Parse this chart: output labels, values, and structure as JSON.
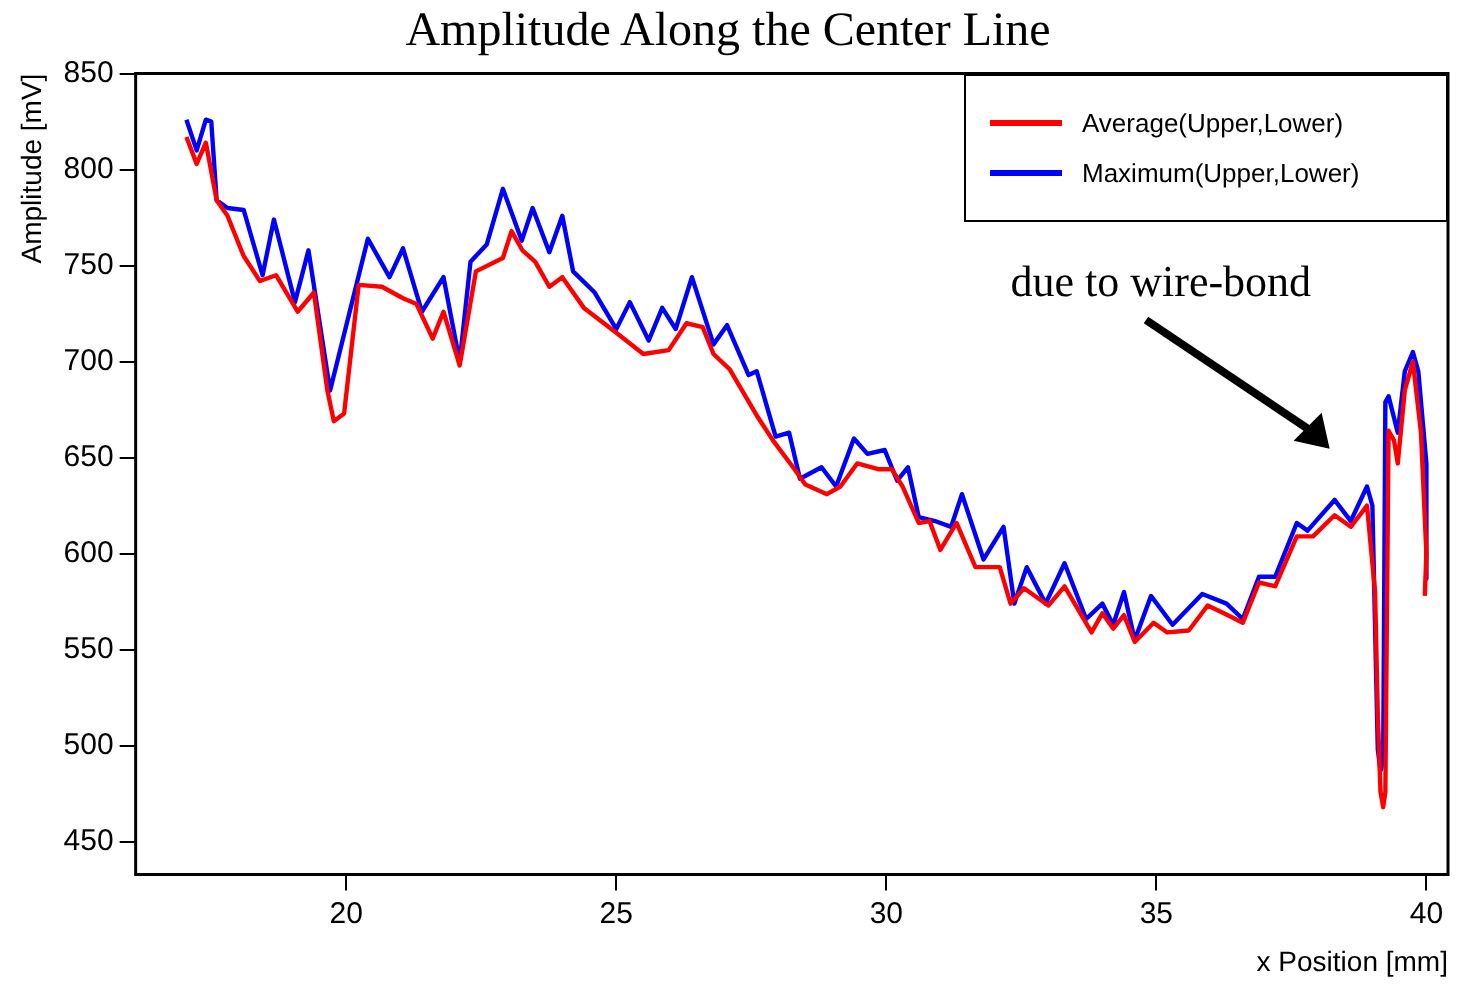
{
  "chart_data": {
    "type": "line",
    "title": "Amplitude Along the Center Line",
    "xlabel": "x Position [mm]",
    "ylabel": "Amplitude [mV]",
    "annotations": [
      "due to wire-bond"
    ],
    "xlim": [
      16.1,
      40.4
    ],
    "xticks": [
      20,
      25,
      30,
      35,
      40
    ],
    "ylim": [
      433,
      850
    ],
    "yticks": [
      450,
      500,
      550,
      600,
      650,
      700,
      750,
      800,
      850
    ],
    "grid": false,
    "legend": "top right",
    "marker": "none",
    "line_style": "solid",
    "series": [
      {
        "name": "Average(Upper,Lower)",
        "color": "#ff0000",
        "x": [
          17.04,
          17.23,
          17.4,
          17.6,
          17.8,
          18.1,
          18.4,
          18.7,
          19.1,
          19.4,
          19.65,
          19.77,
          19.96,
          20.23,
          20.66,
          21.05,
          21.3,
          21.6,
          21.8,
          22.1,
          22.4,
          22.9,
          23.06,
          23.26,
          23.5,
          23.76,
          24.0,
          24.4,
          25.0,
          25.5,
          25.97,
          26.3,
          26.6,
          26.8,
          27.1,
          27.6,
          27.9,
          28.3,
          28.5,
          28.9,
          29.15,
          29.46,
          29.85,
          30.1,
          30.3,
          30.6,
          30.8,
          31.0,
          31.3,
          31.65,
          32.1,
          32.3,
          32.55,
          33.0,
          33.3,
          33.8,
          34.0,
          34.2,
          34.4,
          34.6,
          34.95,
          35.2,
          35.6,
          35.95,
          36.25,
          36.6,
          36.9,
          37.2,
          37.6,
          37.9,
          38.3,
          38.6,
          38.9,
          39.05,
          39.1,
          39.15,
          39.2,
          39.24,
          39.3,
          39.4,
          39.47,
          39.6,
          39.75,
          39.9,
          40.0,
          39.97
        ],
        "values": [
          817,
          803,
          814,
          784,
          776,
          755,
          742,
          745,
          726,
          736,
          685,
          669,
          673,
          740,
          739,
          733,
          730,
          712,
          726,
          698,
          747,
          754,
          768,
          758,
          752,
          739,
          744,
          728,
          715,
          704,
          706,
          720,
          718,
          704,
          696,
          672,
          659,
          644,
          636,
          631,
          635,
          647,
          644,
          644,
          635,
          616,
          617,
          602,
          616,
          593,
          593,
          574,
          582,
          573,
          583,
          559,
          569,
          561,
          568,
          554,
          564,
          559,
          560,
          573,
          569,
          564,
          585,
          583,
          609,
          609,
          620,
          614,
          625,
          580,
          517,
          476,
          468,
          476,
          664,
          659,
          647,
          685,
          700,
          663,
          600,
          578
        ]
      },
      {
        "name": "Maximum(Upper,Lower)",
        "color": "#0000ff",
        "x": [
          17.04,
          17.23,
          17.4,
          17.5,
          17.6,
          17.8,
          18.1,
          18.45,
          18.66,
          19.05,
          19.3,
          19.7,
          20.4,
          20.8,
          21.05,
          21.4,
          21.8,
          22.1,
          22.3,
          22.6,
          22.9,
          23.25,
          23.45,
          23.76,
          24.0,
          24.2,
          24.6,
          25.0,
          25.25,
          25.6,
          25.85,
          26.1,
          26.4,
          26.8,
          27.05,
          27.45,
          27.6,
          27.95,
          28.2,
          28.4,
          28.8,
          29.07,
          29.4,
          29.65,
          29.97,
          30.2,
          30.4,
          30.6,
          30.9,
          31.2,
          31.4,
          31.8,
          32.17,
          32.37,
          32.6,
          32.95,
          33.3,
          33.7,
          34.0,
          34.2,
          34.4,
          34.6,
          34.9,
          35.3,
          35.85,
          36.3,
          36.6,
          36.9,
          37.2,
          37.6,
          37.8,
          38.3,
          38.6,
          38.9,
          39.0,
          39.1,
          39.15,
          39.2,
          39.24,
          39.3,
          39.47,
          39.6,
          39.75,
          39.85,
          40.0,
          40.0
        ],
        "values": [
          826,
          810,
          826,
          825,
          784,
          780,
          779,
          745,
          774,
          731,
          758,
          685,
          764,
          744,
          759,
          726,
          744,
          700,
          752,
          761,
          790,
          763,
          780,
          757,
          776,
          747,
          736,
          717,
          731,
          711,
          728,
          717,
          744,
          709,
          719,
          693,
          695,
          661,
          663,
          639,
          645,
          635,
          660,
          652,
          654,
          638,
          645,
          619,
          617,
          614,
          631,
          597,
          614,
          574,
          593,
          574,
          595,
          566,
          574,
          563,
          580,
          555,
          578,
          563,
          579,
          574,
          566,
          588,
          588,
          616,
          612,
          628,
          617,
          635,
          625,
          498,
          487,
          492,
          679,
          682,
          663,
          695,
          705,
          695,
          647,
          587
        ]
      }
    ]
  }
}
